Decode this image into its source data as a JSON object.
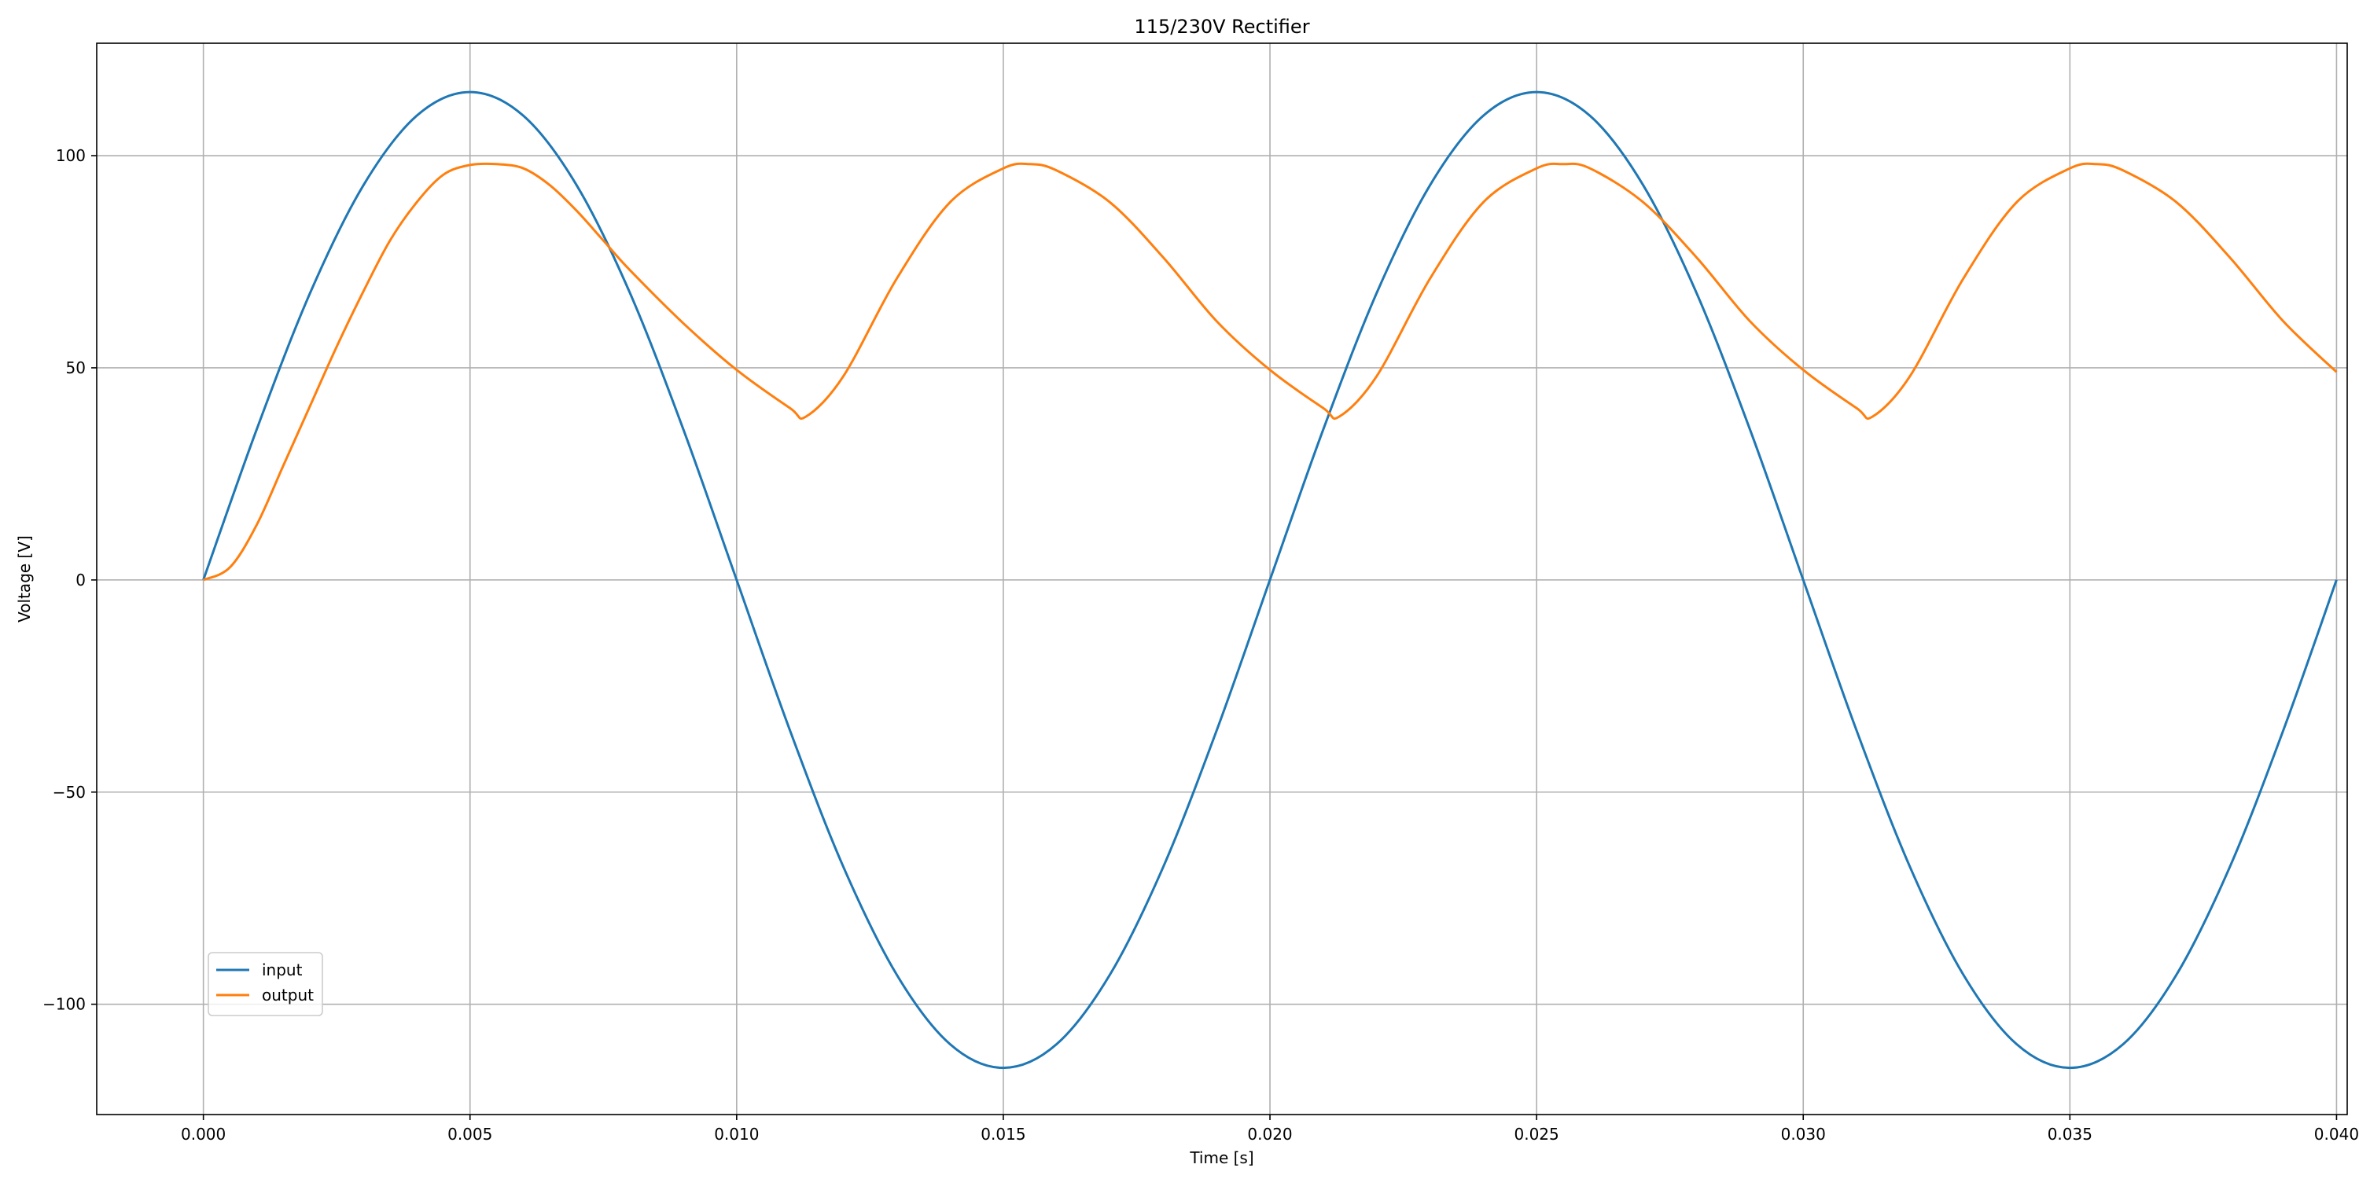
{
  "chart_data": {
    "type": "line",
    "title": "115/230V Rectifier",
    "xlabel": "Time [s]",
    "ylabel": "Voltage [V]",
    "xlim": [
      -0.002,
      0.0402
    ],
    "ylim": [
      -126,
      126.5
    ],
    "xticks": [
      0.0,
      0.005,
      0.01,
      0.015,
      0.02,
      0.025,
      0.03,
      0.035,
      0.04
    ],
    "xtick_labels": [
      "0.000",
      "0.005",
      "0.010",
      "0.015",
      "0.020",
      "0.025",
      "0.030",
      "0.035",
      "0.040"
    ],
    "yticks": [
      -100,
      -50,
      0,
      50,
      100
    ],
    "ytick_labels": [
      "−100",
      "−50",
      "0",
      "50",
      "100"
    ],
    "grid": true,
    "legend_position": "lower-left",
    "series": [
      {
        "name": "input",
        "color": "#1f77b4",
        "x": [
          0.0,
          0.001,
          0.002,
          0.003,
          0.004,
          0.005,
          0.006,
          0.007,
          0.008,
          0.009,
          0.01,
          0.011,
          0.012,
          0.013,
          0.014,
          0.015,
          0.016,
          0.017,
          0.018,
          0.019,
          0.02,
          0.021,
          0.022,
          0.023,
          0.024,
          0.025,
          0.026,
          0.027,
          0.028,
          0.029,
          0.03,
          0.031,
          0.032,
          0.033,
          0.034,
          0.035,
          0.036,
          0.037,
          0.038,
          0.039,
          0.04
        ],
        "y": [
          0.0,
          35.5,
          67.6,
          93.0,
          109.4,
          115.0,
          109.4,
          93.0,
          67.6,
          35.5,
          0.0,
          -35.5,
          -67.6,
          -93.0,
          -109.4,
          -115.0,
          -109.4,
          -93.0,
          -67.6,
          -35.5,
          0.0,
          35.5,
          67.6,
          93.0,
          109.4,
          115.0,
          109.4,
          93.0,
          67.6,
          35.5,
          0.0,
          -35.5,
          -67.6,
          -93.0,
          -109.4,
          -115.0,
          -109.4,
          -93.0,
          -67.6,
          -35.5,
          0.0
        ]
      },
      {
        "name": "output",
        "color": "#ff7f0e",
        "x": [
          0.0,
          0.0005,
          0.001,
          0.0015,
          0.002,
          0.0025,
          0.003,
          0.0035,
          0.004,
          0.0045,
          0.005,
          0.0055,
          0.006,
          0.0065,
          0.007,
          0.0075,
          0.008,
          0.009,
          0.01,
          0.011,
          0.0113,
          0.012,
          0.013,
          0.014,
          0.015,
          0.0155,
          0.016,
          0.017,
          0.018,
          0.019,
          0.02,
          0.021,
          0.0213,
          0.022,
          0.023,
          0.024,
          0.025,
          0.0255,
          0.026,
          0.027,
          0.028,
          0.029,
          0.03,
          0.031,
          0.0313,
          0.032,
          0.033,
          0.034,
          0.035,
          0.0355,
          0.036,
          0.037,
          0.038,
          0.039,
          0.04
        ],
        "y": [
          0.0,
          3.0,
          13.0,
          27.0,
          41.0,
          55.0,
          68.0,
          80.0,
          89.0,
          95.5,
          97.8,
          98.0,
          97.0,
          93.0,
          87.0,
          80.0,
          73.0,
          60.5,
          49.5,
          40.5,
          38.5,
          48.0,
          71.0,
          89.0,
          97.0,
          98.0,
          96.5,
          89.0,
          76.0,
          61.0,
          49.5,
          40.5,
          38.5,
          48.0,
          71.0,
          89.0,
          97.0,
          98.0,
          97.0,
          89.0,
          76.0,
          61.0,
          49.5,
          40.5,
          38.5,
          48.0,
          71.0,
          89.0,
          97.0,
          98.0,
          96.5,
          89.0,
          76.0,
          61.0,
          49.0
        ]
      }
    ]
  }
}
